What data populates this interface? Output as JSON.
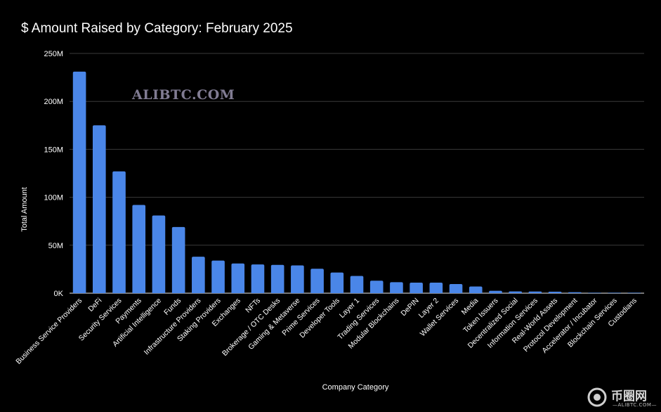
{
  "chart_data": {
    "type": "bar",
    "title": "$ Amount Raised by Category: February 2025",
    "xlabel": "Company Category",
    "ylabel": "Total Amount",
    "ylim": [
      0,
      250000000
    ],
    "yticks": [
      0,
      50000000,
      100000000,
      150000000,
      200000000,
      250000000
    ],
    "ytick_labels": [
      "0K",
      "50M",
      "100M",
      "150M",
      "200M",
      "250M"
    ],
    "grid": true,
    "legend": "none",
    "categories": [
      "Business Service Providers",
      "DeFi",
      "Security Services",
      "Payments",
      "Artificial Intelligence",
      "Funds",
      "Infrastructure Providers",
      "Staking Providers",
      "Exchanges",
      "NFTs",
      "Brokerage / OTC Desks",
      "Gaming & Metaverse",
      "Prime Services",
      "Developer Tools",
      "Layer 1",
      "Trading Services",
      "Modular Blockchains",
      "DePIN",
      "Layer 2",
      "Wallet Services",
      "Media",
      "Token Issuers",
      "Decentralized Social",
      "Information Services",
      "Real-World Assets",
      "Protocol Development",
      "Accelerator / Incubator",
      "Blockchain Services",
      "Custodians"
    ],
    "values": [
      231000000,
      175000000,
      127000000,
      92000000,
      81000000,
      69000000,
      38000000,
      34000000,
      31000000,
      30000000,
      29500000,
      29000000,
      25500000,
      21500000,
      18000000,
      13000000,
      11500000,
      11000000,
      11000000,
      9500000,
      7000000,
      2500000,
      1800000,
      1700000,
      1600000,
      1000000,
      300000,
      200000,
      100000
    ],
    "bar_color": "#4a86e8",
    "grid_color": "#3a3a3a",
    "text_color": "#ffffff"
  },
  "watermark": {
    "text": "ALIBTC.COM",
    "logo_text": "币圈网",
    "logo_sub": "—ALIBTC.COM—"
  }
}
